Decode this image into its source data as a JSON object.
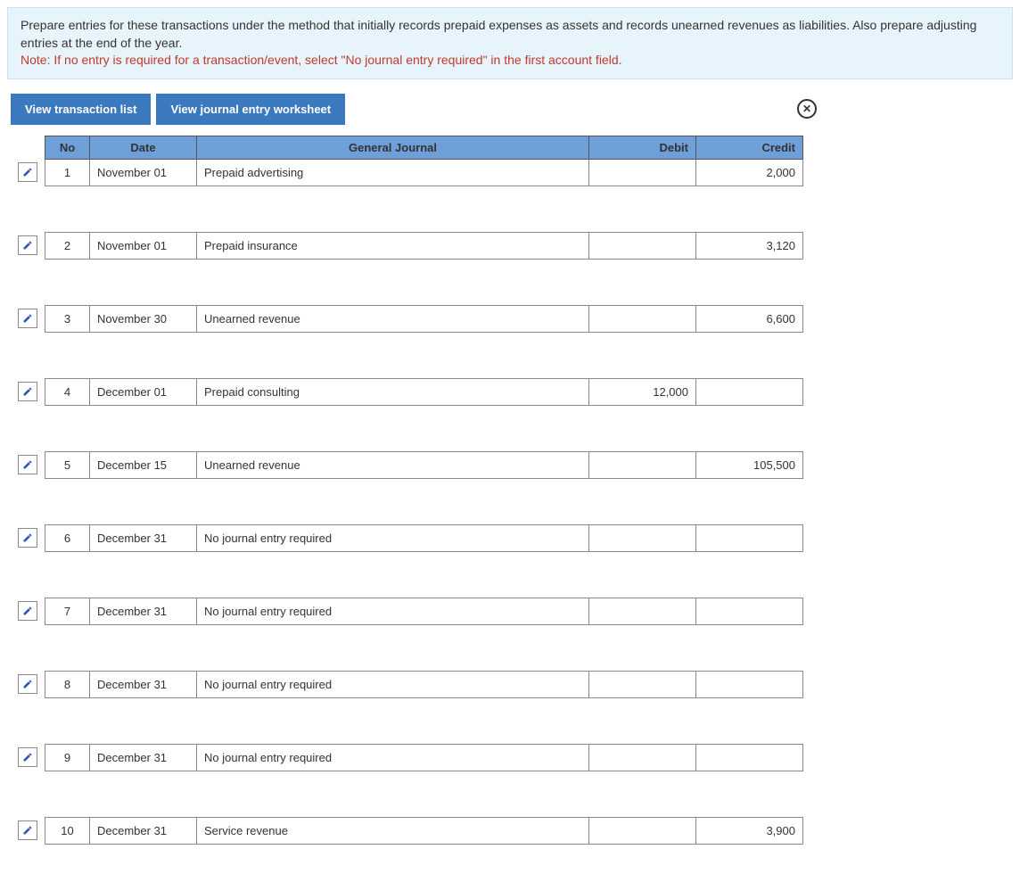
{
  "instructions": {
    "main": "Prepare entries for these transactions under the method that initially records prepaid expenses as assets and records unearned revenues as liabilities. Also prepare adjusting entries at the end of the year.",
    "note_label": "Note:",
    "note_text": " If no entry is required for a transaction/event, select \"No journal entry required\" in the first account field."
  },
  "toolbar": {
    "view_list_label": "View transaction list",
    "view_worksheet_label": "View journal entry worksheet"
  },
  "headers": {
    "no": "No",
    "date": "Date",
    "journal": "General Journal",
    "debit": "Debit",
    "credit": "Credit"
  },
  "entries": [
    {
      "no": "1",
      "date": "November 01",
      "account": "Prepaid advertising",
      "indent": true,
      "debit": "",
      "credit": "2,000"
    },
    {
      "no": "2",
      "date": "November 01",
      "account": "Prepaid insurance",
      "indent": true,
      "debit": "",
      "credit": "3,120"
    },
    {
      "no": "3",
      "date": "November 30",
      "account": "Unearned revenue",
      "indent": true,
      "debit": "",
      "credit": "6,600"
    },
    {
      "no": "4",
      "date": "December 01",
      "account": "Prepaid consulting",
      "indent": false,
      "debit": "12,000",
      "credit": ""
    },
    {
      "no": "5",
      "date": "December 15",
      "account": "Unearned revenue",
      "indent": true,
      "debit": "",
      "credit": "105,500"
    },
    {
      "no": "6",
      "date": "December 31",
      "account": "No journal entry required",
      "indent": false,
      "debit": "",
      "credit": ""
    },
    {
      "no": "7",
      "date": "December 31",
      "account": "No journal entry required",
      "indent": false,
      "debit": "",
      "credit": ""
    },
    {
      "no": "8",
      "date": "December 31",
      "account": "No journal entry required",
      "indent": false,
      "debit": "",
      "credit": ""
    },
    {
      "no": "9",
      "date": "December 31",
      "account": "No journal entry required",
      "indent": false,
      "debit": "",
      "credit": ""
    },
    {
      "no": "10",
      "date": "December 31",
      "account": "Service revenue",
      "indent": true,
      "debit": "",
      "credit": "3,900"
    }
  ],
  "colors": {
    "header_bg": "#6f9fd8",
    "button_bg": "#3b7abf",
    "instructions_bg": "#e8f4fb",
    "note_color": "#c0392b",
    "border_color": "#888"
  }
}
